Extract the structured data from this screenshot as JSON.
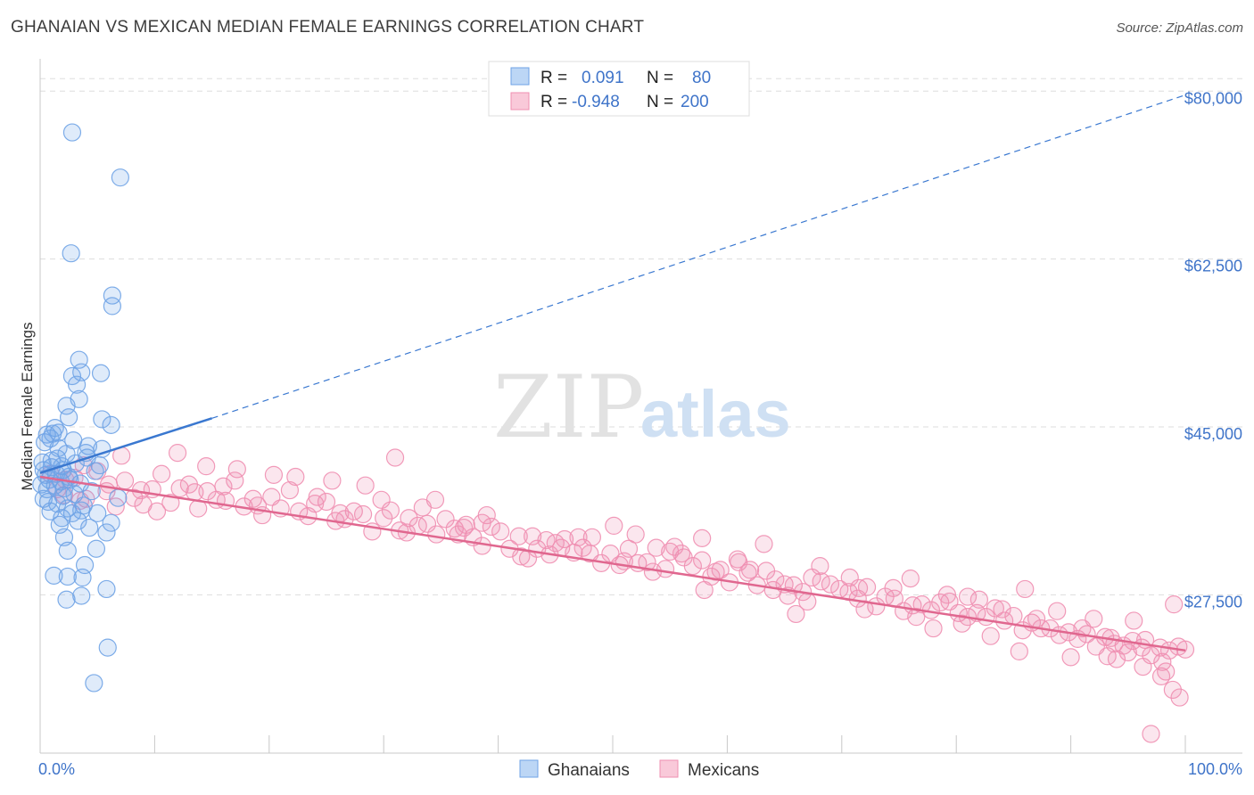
{
  "title": "GHANAIAN VS MEXICAN MEDIAN FEMALE EARNINGS CORRELATION CHART",
  "source": "Source: ZipAtlas.com",
  "watermark": {
    "zip": "ZIP",
    "atlas": "atlas"
  },
  "colors": {
    "ghanaian": "#6fa3e6",
    "ghanaian_line": "#3a78d0",
    "mexican": "#ef8fb1",
    "mexican_line": "#e0678f",
    "tick_text": "#3f74c9",
    "grid": "#dddddd"
  },
  "legend": {
    "rows": [
      {
        "r_label": "R =",
        "r_value": "0.091",
        "n_label": "N =",
        "n_value": "80"
      },
      {
        "r_label": "R =",
        "r_value": "-0.948",
        "n_label": "N =",
        "n_value": "200"
      }
    ]
  },
  "bottom_legend": [
    "Ghanaians",
    "Mexicans"
  ],
  "chart_data": {
    "type": "scatter",
    "title": "GHANAIAN VS MEXICAN MEDIAN FEMALE EARNINGS CORRELATION CHART",
    "xlabel": "",
    "ylabel": "Median Female Earnings",
    "x_tick_labels": [
      "0.0%",
      "100.0%"
    ],
    "y_tick_labels": [
      "$27,500",
      "$45,000",
      "$62,500",
      "$80,000"
    ],
    "y_ticks": [
      27500,
      45000,
      62500,
      80000
    ],
    "xlim": [
      0,
      100
    ],
    "ylim": [
      11000,
      83000
    ],
    "grid": true,
    "legend_placement": "top-center",
    "series": [
      {
        "name": "Ghanaians",
        "r": 0.091,
        "n": 80,
        "trend": {
          "x_solid": [
            0,
            15
          ],
          "y_solid": [
            40200,
            45900
          ],
          "x_dashed": [
            15,
            100
          ],
          "y_dashed": [
            45900,
            79600
          ]
        },
        "points": [
          [
            2.8,
            75.7
          ],
          [
            7.0,
            71.0
          ],
          [
            2.7,
            63.1
          ],
          [
            6.3,
            58.7
          ],
          [
            6.3,
            57.6
          ],
          [
            3.4,
            52.0
          ],
          [
            3.6,
            50.7
          ],
          [
            2.8,
            50.3
          ],
          [
            5.3,
            50.6
          ],
          [
            3.2,
            49.4
          ],
          [
            3.4,
            47.9
          ],
          [
            2.3,
            47.2
          ],
          [
            2.5,
            46.0
          ],
          [
            5.4,
            45.8
          ],
          [
            6.2,
            45.2
          ],
          [
            1.3,
            44.9
          ],
          [
            0.6,
            44.2
          ],
          [
            1.1,
            44.3
          ],
          [
            1.6,
            44.4
          ],
          [
            0.9,
            43.8
          ],
          [
            0.4,
            43.4
          ],
          [
            4.2,
            43.0
          ],
          [
            4.0,
            42.3
          ],
          [
            5.4,
            42.7
          ],
          [
            2.3,
            42.2
          ],
          [
            1.5,
            41.7
          ],
          [
            0.2,
            41.3
          ],
          [
            3.1,
            41.2
          ],
          [
            5.2,
            41.0
          ],
          [
            1.0,
            40.8
          ],
          [
            0.3,
            40.5
          ],
          [
            1.4,
            40.1
          ],
          [
            2.0,
            40.5
          ],
          [
            4.8,
            40.4
          ],
          [
            0.5,
            40.0
          ],
          [
            2.5,
            39.8
          ],
          [
            0.8,
            39.5
          ],
          [
            1.8,
            39.3
          ],
          [
            0.1,
            39.0
          ],
          [
            1.3,
            38.9
          ],
          [
            2.1,
            38.6
          ],
          [
            0.6,
            38.5
          ],
          [
            4.5,
            38.3
          ],
          [
            3.0,
            38.0
          ],
          [
            2.0,
            37.8
          ],
          [
            6.8,
            37.6
          ],
          [
            0.3,
            37.5
          ],
          [
            1.5,
            37.0
          ],
          [
            2.4,
            36.5
          ],
          [
            3.6,
            36.3
          ],
          [
            2.8,
            36.0
          ],
          [
            5.0,
            36.0
          ],
          [
            1.9,
            35.5
          ],
          [
            3.3,
            35.2
          ],
          [
            6.2,
            35.0
          ],
          [
            1.7,
            34.8
          ],
          [
            4.3,
            34.5
          ],
          [
            5.8,
            34.0
          ],
          [
            2.1,
            33.5
          ],
          [
            4.9,
            32.3
          ],
          [
            2.4,
            32.1
          ],
          [
            3.9,
            30.6
          ],
          [
            1.2,
            29.5
          ],
          [
            2.4,
            29.4
          ],
          [
            3.7,
            29.3
          ],
          [
            5.8,
            28.1
          ],
          [
            3.6,
            27.4
          ],
          [
            2.3,
            27.0
          ],
          [
            5.9,
            22.0
          ],
          [
            4.7,
            18.3
          ],
          [
            1.0,
            41.5
          ],
          [
            2.6,
            39.5
          ],
          [
            0.7,
            37.2
          ],
          [
            3.8,
            36.8
          ],
          [
            1.6,
            42.8
          ],
          [
            2.9,
            43.6
          ],
          [
            0.9,
            36.2
          ],
          [
            4.1,
            41.8
          ],
          [
            1.9,
            40.9
          ],
          [
            3.5,
            39.1
          ]
        ]
      },
      {
        "name": "Mexicans",
        "r": -0.948,
        "n": 200,
        "trend": {
          "x": [
            0,
            100
          ],
          "y": [
            39800,
            21700
          ]
        },
        "points": [
          [
            0.9,
            40.1
          ],
          [
            1.5,
            38.5
          ],
          [
            2.1,
            37.9
          ],
          [
            3.0,
            39.7
          ],
          [
            4.0,
            37.5
          ],
          [
            5.0,
            40.4
          ],
          [
            5.8,
            38.3
          ],
          [
            6.6,
            36.7
          ],
          [
            7.4,
            39.4
          ],
          [
            8.2,
            37.6
          ],
          [
            9.0,
            36.9
          ],
          [
            9.8,
            38.5
          ],
          [
            10.6,
            40.1
          ],
          [
            11.4,
            37.1
          ],
          [
            12.2,
            38.6
          ],
          [
            13.0,
            39.0
          ],
          [
            13.8,
            36.5
          ],
          [
            14.6,
            38.3
          ],
          [
            15.4,
            37.4
          ],
          [
            16.2,
            37.3
          ],
          [
            17.0,
            39.4
          ],
          [
            17.8,
            36.7
          ],
          [
            18.6,
            37.5
          ],
          [
            19.4,
            35.8
          ],
          [
            20.2,
            37.7
          ],
          [
            21.0,
            36.5
          ],
          [
            21.8,
            38.4
          ],
          [
            22.6,
            36.2
          ],
          [
            23.4,
            35.7
          ],
          [
            24.2,
            37.7
          ],
          [
            25.0,
            37.2
          ],
          [
            25.8,
            35.2
          ],
          [
            26.6,
            35.4
          ],
          [
            27.4,
            36.2
          ],
          [
            28.2,
            35.9
          ],
          [
            29.0,
            34.1
          ],
          [
            29.8,
            37.4
          ],
          [
            30.6,
            36.3
          ],
          [
            31.4,
            34.2
          ],
          [
            32.2,
            35.5
          ],
          [
            33.0,
            34.7
          ],
          [
            33.8,
            34.9
          ],
          [
            34.6,
            33.8
          ],
          [
            35.4,
            35.4
          ],
          [
            36.2,
            34.4
          ],
          [
            37.0,
            34.5
          ],
          [
            37.8,
            33.5
          ],
          [
            38.6,
            35.0
          ],
          [
            39.4,
            34.6
          ],
          [
            40.2,
            34.1
          ],
          [
            41.0,
            32.3
          ],
          [
            41.8,
            33.6
          ],
          [
            42.6,
            31.3
          ],
          [
            43.4,
            32.3
          ],
          [
            44.2,
            33.2
          ],
          [
            45.0,
            32.9
          ],
          [
            45.8,
            33.3
          ],
          [
            46.6,
            31.9
          ],
          [
            47.4,
            32.4
          ],
          [
            48.2,
            33.5
          ],
          [
            49.0,
            30.8
          ],
          [
            49.8,
            31.8
          ],
          [
            50.6,
            30.6
          ],
          [
            51.4,
            32.3
          ],
          [
            52.2,
            30.8
          ],
          [
            53.0,
            30.9
          ],
          [
            53.8,
            32.4
          ],
          [
            54.6,
            30.2
          ],
          [
            55.4,
            32.5
          ],
          [
            56.2,
            31.4
          ],
          [
            57.0,
            30.5
          ],
          [
            57.8,
            31.1
          ],
          [
            58.6,
            29.4
          ],
          [
            59.4,
            30.1
          ],
          [
            60.2,
            28.8
          ],
          [
            61.0,
            30.9
          ],
          [
            61.8,
            29.8
          ],
          [
            62.6,
            28.5
          ],
          [
            63.4,
            30.0
          ],
          [
            64.2,
            29.1
          ],
          [
            65.0,
            28.6
          ],
          [
            65.8,
            28.5
          ],
          [
            66.6,
            27.8
          ],
          [
            67.4,
            29.3
          ],
          [
            68.2,
            28.9
          ],
          [
            69.0,
            28.6
          ],
          [
            69.8,
            28.1
          ],
          [
            70.6,
            27.8
          ],
          [
            71.4,
            27.1
          ],
          [
            72.2,
            28.3
          ],
          [
            73.0,
            26.3
          ],
          [
            73.8,
            27.3
          ],
          [
            74.6,
            27.1
          ],
          [
            75.4,
            25.8
          ],
          [
            76.2,
            26.4
          ],
          [
            77.0,
            26.5
          ],
          [
            77.8,
            25.9
          ],
          [
            78.6,
            26.7
          ],
          [
            79.4,
            26.8
          ],
          [
            80.2,
            25.6
          ],
          [
            81.0,
            25.2
          ],
          [
            81.8,
            25.6
          ],
          [
            82.6,
            25.2
          ],
          [
            83.4,
            26.1
          ],
          [
            84.2,
            24.8
          ],
          [
            85.0,
            25.3
          ],
          [
            85.8,
            23.8
          ],
          [
            86.6,
            24.6
          ],
          [
            87.4,
            24.0
          ],
          [
            88.2,
            24.0
          ],
          [
            89.0,
            23.3
          ],
          [
            89.8,
            23.6
          ],
          [
            90.6,
            22.9
          ],
          [
            91.4,
            23.4
          ],
          [
            92.2,
            22.1
          ],
          [
            93.0,
            23.1
          ],
          [
            93.8,
            22.4
          ],
          [
            94.6,
            22.2
          ],
          [
            95.4,
            22.7
          ],
          [
            96.2,
            22.0
          ],
          [
            97.0,
            21.2
          ],
          [
            97.8,
            22.0
          ],
          [
            98.6,
            21.7
          ],
          [
            99.4,
            22.1
          ],
          [
            3.5,
            37.3
          ],
          [
            7.1,
            42.0
          ],
          [
            12.0,
            42.3
          ],
          [
            17.2,
            40.6
          ],
          [
            20.4,
            40.0
          ],
          [
            25.5,
            39.4
          ],
          [
            31.0,
            41.8
          ],
          [
            34.5,
            37.4
          ],
          [
            39.0,
            35.8
          ],
          [
            47.0,
            33.5
          ],
          [
            52.0,
            33.8
          ],
          [
            57.8,
            33.4
          ],
          [
            63.2,
            32.8
          ],
          [
            68.1,
            30.5
          ],
          [
            76.0,
            29.2
          ],
          [
            81.0,
            27.3
          ],
          [
            86.0,
            28.1
          ],
          [
            92.0,
            25.0
          ],
          [
            95.5,
            24.8
          ],
          [
            99.0,
            26.5
          ],
          [
            3.8,
            41.0
          ],
          [
            8.8,
            38.4
          ],
          [
            14.5,
            40.9
          ],
          [
            22.3,
            39.8
          ],
          [
            28.4,
            38.9
          ],
          [
            33.4,
            36.6
          ],
          [
            38.6,
            32.6
          ],
          [
            44.5,
            31.7
          ],
          [
            50.1,
            34.7
          ],
          [
            55.0,
            32.0
          ],
          [
            60.9,
            31.2
          ],
          [
            65.3,
            27.4
          ],
          [
            70.7,
            29.3
          ],
          [
            74.5,
            28.2
          ],
          [
            79.2,
            27.5
          ],
          [
            84.0,
            26.0
          ],
          [
            88.8,
            25.8
          ],
          [
            93.2,
            21.1
          ],
          [
            97.9,
            19.0
          ],
          [
            98.9,
            17.6
          ],
          [
            2.2,
            39.5
          ],
          [
            10.2,
            36.2
          ],
          [
            16.0,
            38.8
          ],
          [
            24.0,
            37.0
          ],
          [
            30.0,
            35.5
          ],
          [
            36.5,
            33.8
          ],
          [
            42.0,
            31.5
          ],
          [
            48.0,
            31.8
          ],
          [
            53.5,
            29.9
          ],
          [
            59.0,
            29.9
          ],
          [
            64.0,
            28.0
          ],
          [
            66.0,
            25.5
          ],
          [
            72.0,
            26.0
          ],
          [
            78.0,
            24.0
          ],
          [
            83.0,
            23.2
          ],
          [
            85.5,
            21.6
          ],
          [
            90.0,
            21.0
          ],
          [
            94.0,
            20.8
          ],
          [
            96.3,
            20.0
          ],
          [
            97.0,
            13.0
          ],
          [
            6.0,
            39.0
          ],
          [
            13.5,
            38.2
          ],
          [
            19.0,
            36.8
          ],
          [
            26.2,
            36.0
          ],
          [
            32.0,
            34.0
          ],
          [
            37.2,
            34.8
          ],
          [
            43.0,
            33.6
          ],
          [
            45.5,
            32.4
          ],
          [
            51.0,
            31.0
          ],
          [
            56.0,
            31.8
          ],
          [
            58.0,
            28.0
          ],
          [
            62.0,
            30.1
          ],
          [
            67.0,
            26.8
          ],
          [
            71.5,
            28.2
          ],
          [
            76.5,
            25.2
          ],
          [
            80.5,
            24.5
          ],
          [
            82.0,
            27.0
          ],
          [
            87.0,
            25.0
          ],
          [
            91.0,
            24.0
          ],
          [
            93.5,
            23.0
          ],
          [
            95.0,
            21.5
          ],
          [
            96.5,
            22.8
          ],
          [
            98.0,
            20.5
          ],
          [
            100.0,
            21.8
          ],
          [
            99.5,
            16.8
          ],
          [
            98.3,
            19.5
          ]
        ]
      }
    ]
  }
}
